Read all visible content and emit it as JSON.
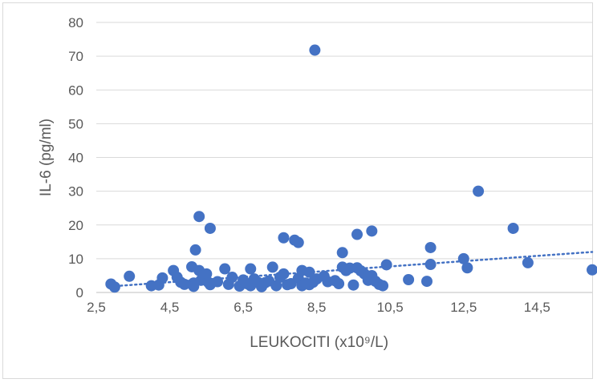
{
  "chart_data": {
    "type": "scatter",
    "xlabel": "LEUKOCITI (x10⁹/L)",
    "ylabel": "IL-6 (pg/ml)",
    "xlim": [
      2.5,
      16.0
    ],
    "ylim": [
      0,
      80
    ],
    "x_ticks": [
      2.5,
      4.5,
      6.5,
      8.5,
      10.5,
      12.5,
      14.5
    ],
    "x_tick_labels": [
      "2,5",
      "4,5",
      "6,5",
      "8,5",
      "10,5",
      "12,5",
      "14,5"
    ],
    "y_ticks": [
      0,
      10,
      20,
      30,
      40,
      50,
      60,
      70,
      80
    ],
    "y_tick_labels": [
      "0",
      "10",
      "20",
      "30",
      "40",
      "50",
      "60",
      "70",
      "80"
    ],
    "grid": "horizontal",
    "marker_color": "#4472c4",
    "trendline": {
      "type": "linear",
      "style": "dotted",
      "x": [
        2.9,
        16.0
      ],
      "y": [
        1.8,
        12.0
      ],
      "color": "#4472c4"
    },
    "points": [
      [
        2.9,
        2.5
      ],
      [
        3.0,
        1.6
      ],
      [
        3.4,
        4.8
      ],
      [
        4.0,
        2.0
      ],
      [
        4.2,
        2.2
      ],
      [
        4.3,
        4.3
      ],
      [
        4.6,
        6.5
      ],
      [
        4.7,
        4.5
      ],
      [
        4.8,
        3.0
      ],
      [
        4.9,
        2.4
      ],
      [
        5.1,
        7.6
      ],
      [
        5.15,
        2.8
      ],
      [
        5.15,
        1.8
      ],
      [
        5.2,
        12.6
      ],
      [
        5.3,
        22.5
      ],
      [
        5.3,
        6.5
      ],
      [
        5.35,
        3.6
      ],
      [
        5.5,
        5.5
      ],
      [
        5.55,
        3.0
      ],
      [
        5.6,
        19.0
      ],
      [
        5.6,
        2.3
      ],
      [
        5.8,
        3.2
      ],
      [
        6.0,
        7.0
      ],
      [
        6.1,
        2.4
      ],
      [
        6.2,
        4.5
      ],
      [
        6.4,
        1.9
      ],
      [
        6.5,
        3.7
      ],
      [
        6.6,
        2.6
      ],
      [
        6.7,
        2.0
      ],
      [
        6.7,
        7.0
      ],
      [
        6.8,
        4.0
      ],
      [
        6.9,
        3.0
      ],
      [
        7.0,
        1.7
      ],
      [
        7.1,
        2.9
      ],
      [
        7.2,
        3.4
      ],
      [
        7.3,
        7.5
      ],
      [
        7.4,
        2.0
      ],
      [
        7.5,
        4.5
      ],
      [
        7.6,
        16.2
      ],
      [
        7.6,
        5.5
      ],
      [
        7.7,
        2.3
      ],
      [
        7.8,
        2.6
      ],
      [
        7.9,
        15.5
      ],
      [
        8.0,
        14.8
      ],
      [
        8.0,
        4.2
      ],
      [
        8.1,
        6.5
      ],
      [
        8.1,
        2.0
      ],
      [
        8.2,
        2.8
      ],
      [
        8.3,
        6.0
      ],
      [
        8.3,
        2.3
      ],
      [
        8.4,
        3.0
      ],
      [
        8.45,
        71.8
      ],
      [
        8.5,
        4.0
      ],
      [
        8.7,
        4.8
      ],
      [
        8.8,
        3.2
      ],
      [
        9.0,
        3.5
      ],
      [
        9.1,
        2.6
      ],
      [
        9.2,
        11.8
      ],
      [
        9.2,
        7.5
      ],
      [
        9.3,
        6.5
      ],
      [
        9.4,
        7.2
      ],
      [
        9.5,
        2.2
      ],
      [
        9.6,
        7.3
      ],
      [
        9.6,
        17.2
      ],
      [
        9.7,
        6.4
      ],
      [
        9.8,
        5.5
      ],
      [
        9.9,
        4.8
      ],
      [
        9.9,
        3.6
      ],
      [
        10.0,
        18.2
      ],
      [
        10.0,
        5.0
      ],
      [
        10.1,
        3.3
      ],
      [
        10.2,
        2.4
      ],
      [
        10.3,
        2.0
      ],
      [
        10.4,
        8.2
      ],
      [
        11.0,
        3.8
      ],
      [
        11.5,
        3.3
      ],
      [
        11.6,
        13.3
      ],
      [
        11.6,
        8.3
      ],
      [
        12.5,
        10.0
      ],
      [
        12.6,
        7.3
      ],
      [
        12.9,
        30.0
      ],
      [
        13.85,
        19.0
      ],
      [
        14.25,
        8.8
      ],
      [
        16.0,
        6.7
      ]
    ]
  }
}
